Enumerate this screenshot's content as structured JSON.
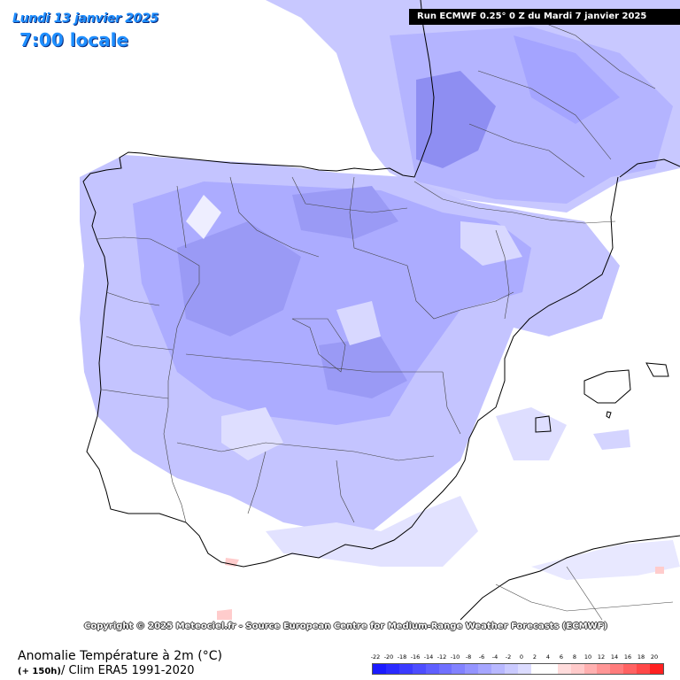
{
  "header": {
    "date": "Lundi 13 janvier 2025",
    "time": "7:00 locale",
    "run": "Run ECMWF 0.25° 0 Z du Mardi 7 janvier 2025"
  },
  "copyright": "Copyright © 2025 Meteociel.fr - Source European Centre for Medium-Range Weather Forecasts (ECMWF)",
  "footer": {
    "title": "Anomalie Température à 2m (°C)",
    "subtitle_prefix": "(+ 150h)",
    "subtitle": "/ Clim ERA5 1991-2020"
  },
  "legend": {
    "labels": [
      "-22",
      "-20",
      "-18",
      "-16",
      "-14",
      "-12",
      "-10",
      "-8",
      "-6",
      "-4",
      "-2",
      "0",
      "2",
      "4",
      "6",
      "8",
      "10",
      "12",
      "14",
      "16",
      "18",
      "20"
    ],
    "colors": [
      "#1a1aff",
      "#2a2aff",
      "#3b3bff",
      "#4d4dff",
      "#5f5fff",
      "#7070ff",
      "#8282ff",
      "#9494ff",
      "#a6a6ff",
      "#b8b8ff",
      "#cacaff",
      "#dcdcff",
      "#ffffff",
      "#ffffff",
      "#ffdcdc",
      "#ffcaca",
      "#ffb0b0",
      "#ff9696",
      "#ff7c7c",
      "#ff6262",
      "#ff4848",
      "#ff2020"
    ]
  }
}
